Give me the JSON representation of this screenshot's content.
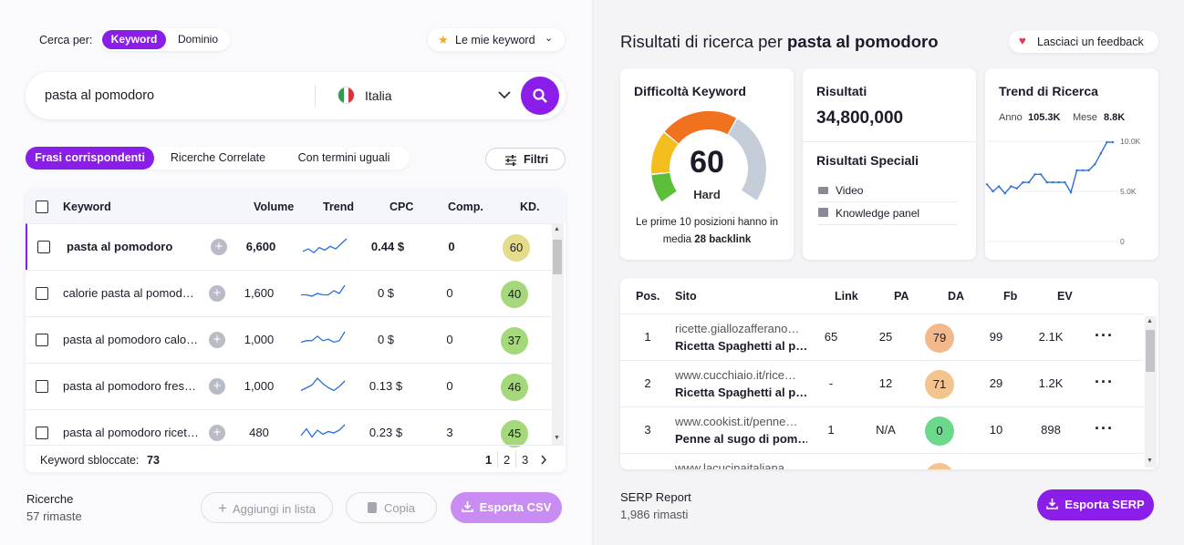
{
  "search_by": {
    "label": "Cerca per:",
    "option_keyword": "Keyword",
    "option_domain": "Dominio"
  },
  "my_keywords": "Le mie keyword",
  "search": {
    "query": "pasta al pomodoro",
    "country": "Italia"
  },
  "tabs": [
    "Frasi corrispondenti",
    "Ricerche Correlate",
    "Con termini uguali"
  ],
  "filters_label": "Filtri",
  "keyword_table": {
    "headers": {
      "keyword": "Keyword",
      "volume": "Volume",
      "trend": "Trend",
      "cpc": "CPC",
      "comp": "Comp.",
      "kd": "KD."
    },
    "rows": [
      {
        "keyword": "pasta al pomodoro",
        "volume": "6,600",
        "cpc": "0.44 $",
        "comp": "0",
        "kd": "60",
        "kd_color": "#e4dc8a",
        "trend": [
          3,
          5,
          2,
          6,
          4,
          7,
          5,
          9,
          13
        ]
      },
      {
        "keyword": "calorie pasta al pomod…",
        "volume": "1,600",
        "cpc": "0 $",
        "comp": "0",
        "kd": "40",
        "kd_color": "#a4d87a",
        "trend": [
          5,
          5,
          4,
          6,
          5,
          5,
          8,
          6,
          12
        ]
      },
      {
        "keyword": "pasta al pomodoro calo…",
        "volume": "1,000",
        "cpc": "0 $",
        "comp": "0",
        "kd": "37",
        "kd_color": "#a4d87a",
        "trend": [
          4,
          5,
          5,
          8,
          5,
          6,
          4,
          5,
          11
        ]
      },
      {
        "keyword": "pasta al pomodoro fres…",
        "volume": "1,000",
        "cpc": "0.13 $",
        "comp": "0",
        "kd": "46",
        "kd_color": "#a4d87a",
        "trend": [
          3,
          5,
          7,
          12,
          8,
          5,
          3,
          6,
          10
        ]
      },
      {
        "keyword": "pasta al pomodoro ricet…",
        "volume": "480",
        "cpc": "0.23 $",
        "comp": "3",
        "kd": "45",
        "kd_color": "#a4d87a",
        "trend": [
          4,
          9,
          3,
          8,
          5,
          7,
          6,
          8,
          12
        ]
      }
    ],
    "unlocked_label": "Keyword sbloccate:",
    "unlocked_count": "73",
    "pages": [
      "1",
      "2",
      "3"
    ]
  },
  "searches": {
    "label": "Ricerche",
    "remaining": "57 rimaste"
  },
  "actions": {
    "add_list": "Aggiungi in lista",
    "copy": "Copia",
    "export_csv": "Esporta CSV"
  },
  "results": {
    "title_prefix": "Risultati di ricerca per",
    "title_query": "pasta al pomodoro",
    "feedback": "Lasciaci un feedback"
  },
  "difficulty": {
    "title": "Difficoltà Keyword",
    "value": "60",
    "level": "Hard",
    "note": "Le prime 10 posizioni hanno in media",
    "note_bold": "28 backlink",
    "score": 60
  },
  "results_card": {
    "title": "Risultati",
    "count": "34,800,000",
    "special_title": "Risultati Speciali",
    "special": [
      "Video",
      "Knowledge panel"
    ]
  },
  "trend_card": {
    "title": "Trend di Ricerca",
    "year_label": "Anno",
    "year_value": "105.3K",
    "month_label": "Mese",
    "month_value": "8.8K",
    "axis": [
      "10.0K",
      "5.0K",
      "0"
    ],
    "points": [
      5.7,
      5.0,
      5.5,
      4.8,
      5.5,
      5.3,
      5.9,
      5.9,
      6.7,
      6.7,
      5.9,
      5.9,
      5.9,
      5.9,
      4.9,
      7.1,
      7.1,
      7.1,
      7.7,
      8.8,
      9.9,
      9.9
    ]
  },
  "serp": {
    "headers": {
      "pos": "Pos.",
      "site": "Sito",
      "link": "Link",
      "pa": "PA",
      "da": "DA",
      "fb": "Fb",
      "ev": "EV"
    },
    "rows": [
      {
        "pos": "1",
        "url": "ricette.giallozafferano…",
        "title": "Ricetta Spaghetti al p…",
        "link": "65",
        "pa": "25",
        "da": "79",
        "da_color": "#f4b98a",
        "fb": "99",
        "ev": "2.1K"
      },
      {
        "pos": "2",
        "url": "www.cucchiaio.it/rice…",
        "title": "Ricetta Spaghetti al p…",
        "link": "-",
        "pa": "12",
        "da": "71",
        "da_color": "#f4c48e",
        "fb": "29",
        "ev": "1.2K"
      },
      {
        "pos": "3",
        "url": "www.cookist.it/penne…",
        "title": "Penne al sugo di pom…",
        "link": "1",
        "pa": "N/A",
        "da": "0",
        "da_color": "#6bd88a",
        "fb": "10",
        "ev": "898"
      },
      {
        "pos": "4",
        "url": "www.lacucinaitaliana…",
        "title": "",
        "link": "",
        "pa": "",
        "da": "",
        "da_color": "#f4c48e",
        "fb": "",
        "ev": ""
      }
    ]
  },
  "serp_report": {
    "label": "SERP Report",
    "remaining": "1,986 rimasti",
    "export": "Esporta SERP"
  }
}
